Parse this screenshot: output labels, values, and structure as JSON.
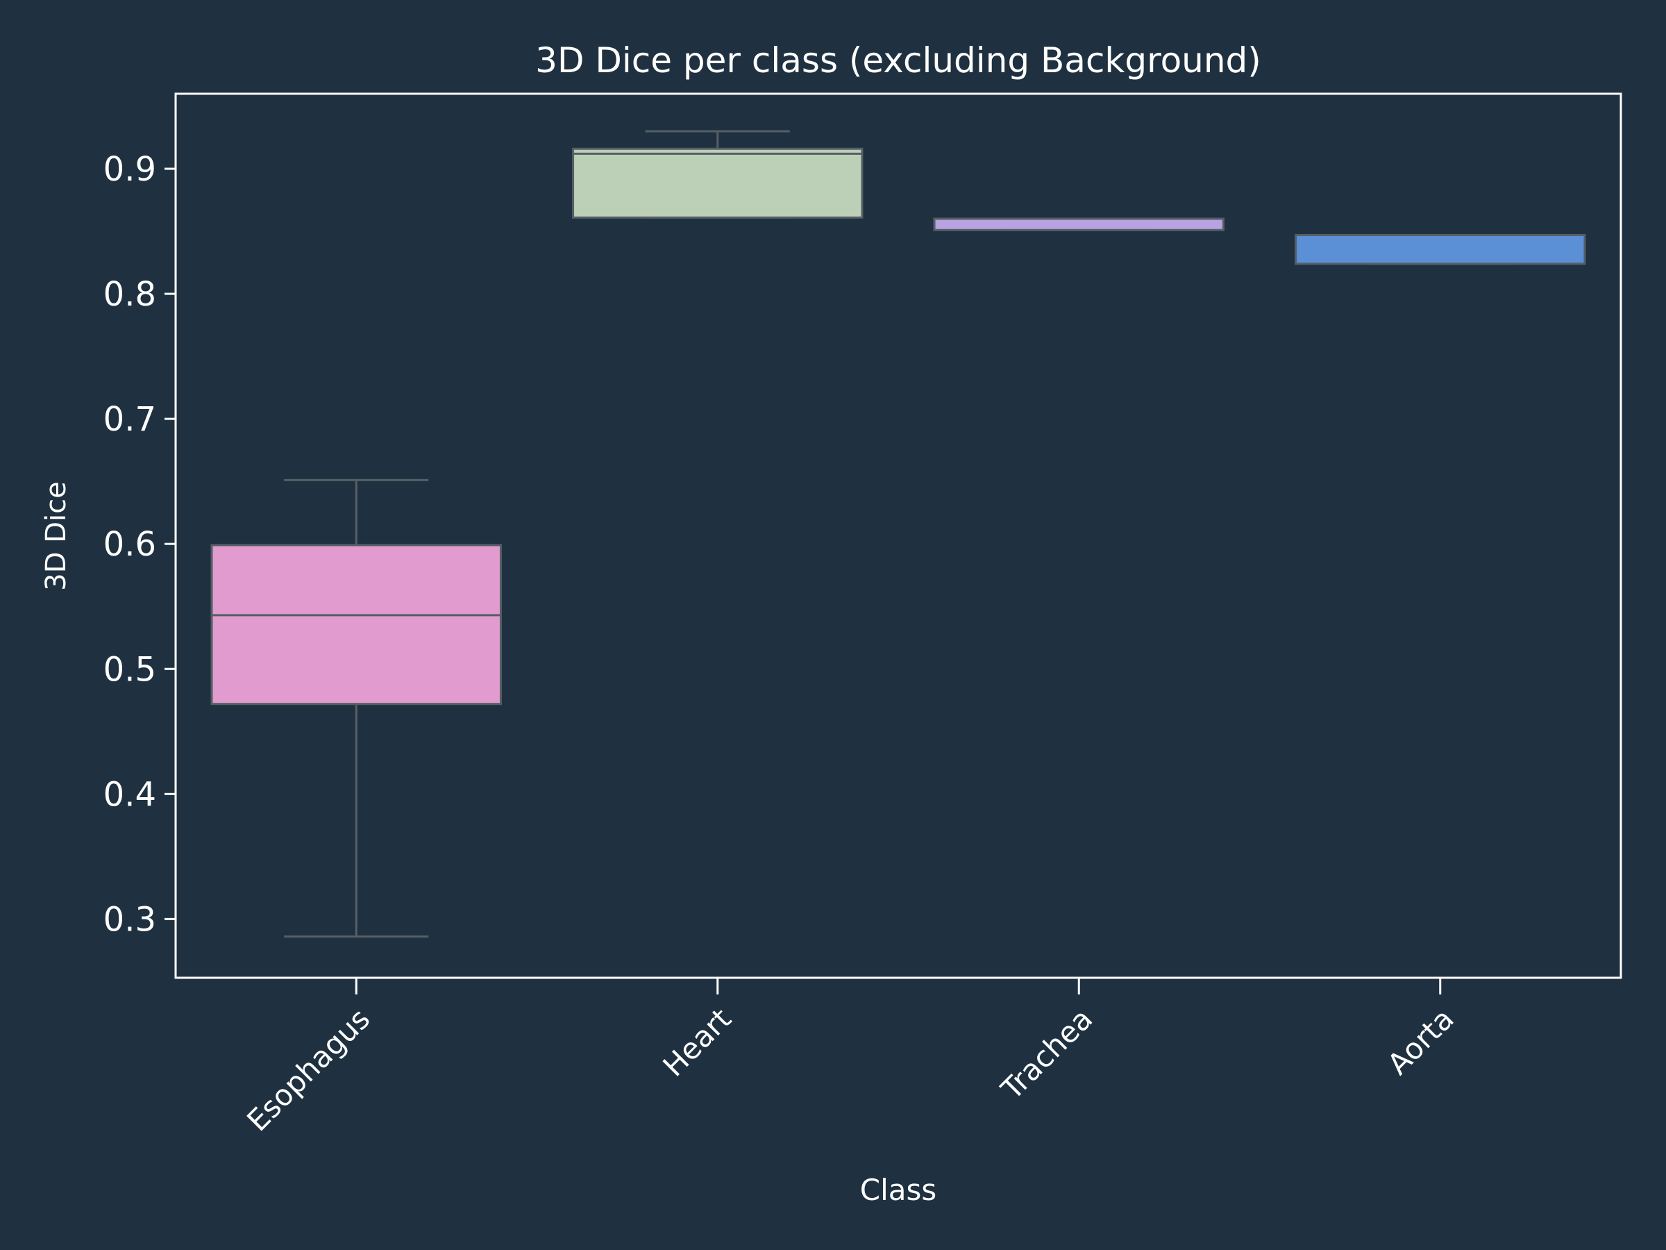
{
  "chart_data": {
    "type": "box",
    "title": "3D Dice per class (excluding Background)",
    "xlabel": "Class",
    "ylabel": "3D Dice",
    "ylim": [
      0.253,
      0.96
    ],
    "yticks": [
      0.3,
      0.4,
      0.5,
      0.6,
      0.7,
      0.8,
      0.9
    ],
    "ytick_labels": [
      "0.3",
      "0.4",
      "0.5",
      "0.6",
      "0.7",
      "0.8",
      "0.9"
    ],
    "categories": [
      "Esophagus",
      "Heart",
      "Trachea",
      "Aorta"
    ],
    "boxes": [
      {
        "category": "Esophagus",
        "whisker_low": 0.286,
        "q1": 0.472,
        "median": 0.543,
        "q3": 0.599,
        "whisker_high": 0.651,
        "color": "#e19bcf"
      },
      {
        "category": "Heart",
        "whisker_low": 0.861,
        "q1": 0.861,
        "median": 0.912,
        "q3": 0.916,
        "whisker_high": 0.93,
        "color": "#bcd0b7"
      },
      {
        "category": "Trachea",
        "whisker_low": 0.851,
        "q1": 0.851,
        "median": 0.86,
        "q3": 0.86,
        "whisker_high": 0.86,
        "color": "#b8a2e1"
      },
      {
        "category": "Aorta",
        "whisker_low": 0.824,
        "q1": 0.824,
        "median": 0.847,
        "q3": 0.847,
        "whisker_high": 0.847,
        "color": "#5b8fd6"
      }
    ],
    "grid": false,
    "background": "#1f3140",
    "axis_color": "#ffffff",
    "box_edge_color": "#555f66"
  }
}
